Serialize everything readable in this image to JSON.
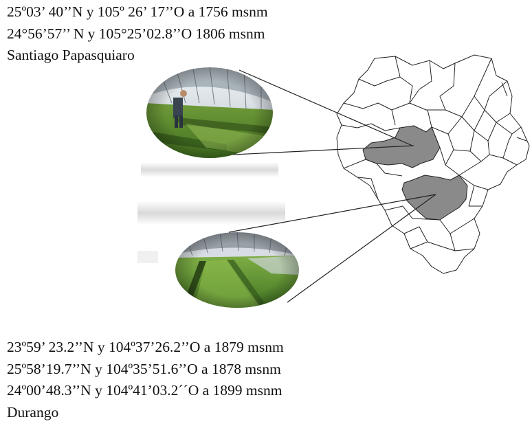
{
  "top_site": {
    "coords": [
      "25º03’ 40’’N y 105º 26’ 17’’O a 1756 msnm",
      "24°56’57’’ N y 105°25’02.8’’O 1806 msnm"
    ],
    "place": "Santiago Papasquiaro"
  },
  "bottom_site": {
    "coords": [
      "23º59’ 23.2’’N y 104º37’26.2’’O a 1879 msnm",
      "25º58’19.7’’N y 104º35’51.6’’O a 1878 msnm",
      "24º00’48.3’’N y 104º41’03.2´´O a 1899 msnm"
    ],
    "place": "Durango"
  },
  "map": {
    "region_fill": "#ffffff",
    "border_color": "#222222",
    "highlight_color": "#8a8a8a"
  }
}
